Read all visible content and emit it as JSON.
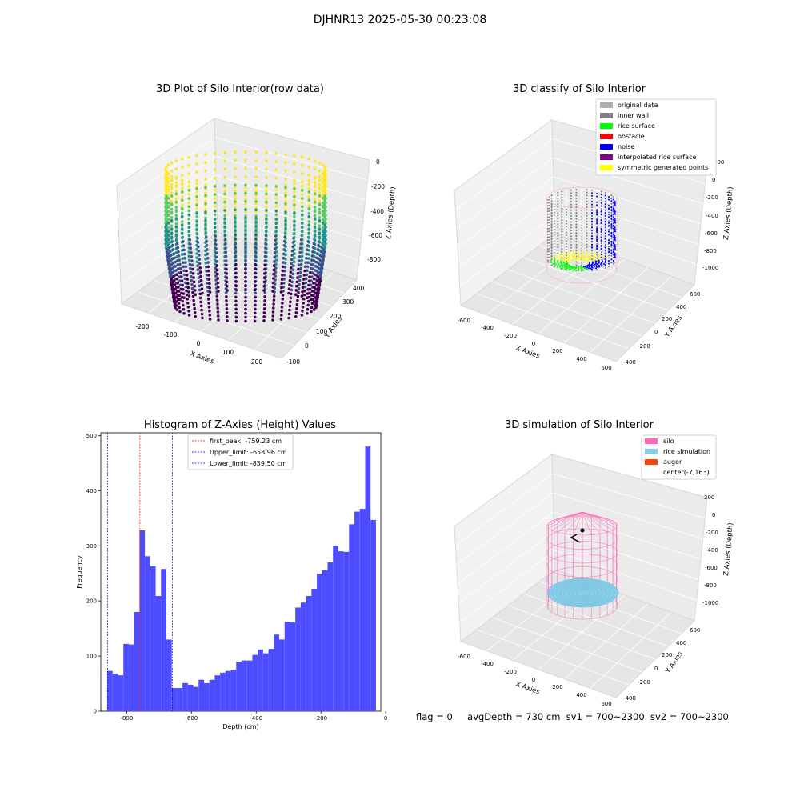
{
  "figure": {
    "suptitle": "DJHNR13 2025-05-30 00:23:08"
  },
  "panel_raw": {
    "title": "3D Plot of Silo Interior(row data)",
    "xlabel": "X Axies",
    "ylabel": "Y Axies",
    "zlabel": "Z Axies (Depth)",
    "xticks": [
      "-200",
      "-100",
      "0",
      "100",
      "200"
    ],
    "yticks": [
      "-100",
      "0",
      "100",
      "200",
      "300",
      "400"
    ],
    "zticks": [
      "0",
      "-200",
      "-400",
      "-600",
      "-800"
    ],
    "colormap": [
      "#440154",
      "#3b528b",
      "#21918c",
      "#5ec962",
      "#fde725"
    ]
  },
  "panel_classify": {
    "title": "3D classify of Silo Interior",
    "xlabel": "X Axies",
    "ylabel": "Y Axies",
    "zlabel": "Z Axies (Depth)",
    "xticks": [
      "-600",
      "-400",
      "-200",
      "0",
      "200",
      "400",
      "600"
    ],
    "yticks": [
      "-400",
      "-200",
      "0",
      "200",
      "400",
      "600"
    ],
    "zticks": [
      "200",
      "0",
      "-200",
      "-400",
      "-600",
      "-800",
      "-1000"
    ],
    "legend": [
      {
        "label": "original data",
        "color": "#b0b0b0"
      },
      {
        "label": "inner wall",
        "color": "#808080"
      },
      {
        "label": "rice surface",
        "color": "#00ff00"
      },
      {
        "label": "obstacle",
        "color": "#ff0000"
      },
      {
        "label": "noise",
        "color": "#0000ff"
      },
      {
        "label": "interpolated rice surface",
        "color": "#800080"
      },
      {
        "label": "symmetric generated points",
        "color": "#ffff00"
      }
    ]
  },
  "panel_sim": {
    "title": "3D simulation of Silo Interior",
    "xlabel": "X Axies",
    "ylabel": "Y Axies",
    "zlabel": "Z Axies (Depth)",
    "xticks": [
      "-600",
      "-400",
      "-200",
      "0",
      "200",
      "400",
      "600"
    ],
    "yticks": [
      "-400",
      "-200",
      "0",
      "200",
      "400",
      "600"
    ],
    "zticks": [
      "200",
      "0",
      "-200",
      "-400",
      "-600",
      "-800",
      "-1000"
    ],
    "legend": [
      {
        "label": "silo",
        "color": "#ff69b4"
      },
      {
        "label": "rice simulation",
        "color": "#87ceeb"
      },
      {
        "label": "auger",
        "color": "#ff4500"
      },
      {
        "label": "center(-7,163)",
        "color": "#ffffff"
      }
    ]
  },
  "chart_data": {
    "type": "bar",
    "title": "Histogram of Z-Axies (Height) Values",
    "xlabel": "Depth (cm)",
    "ylabel": "Frequency",
    "xlim": [
      -880,
      -15
    ],
    "ylim": [
      0,
      505
    ],
    "xticks": [
      -800,
      -600,
      -400,
      -200,
      0
    ],
    "yticks": [
      0,
      100,
      200,
      300,
      400,
      500
    ],
    "bar_color": "#4d4dff",
    "bin_start": -860,
    "bin_width": 16.6,
    "values": [
      73,
      68,
      65,
      122,
      121,
      180,
      328,
      281,
      263,
      209,
      258,
      130,
      42,
      42,
      51,
      48,
      44,
      57,
      51,
      57,
      65,
      70,
      73,
      75,
      90,
      92,
      92,
      102,
      112,
      105,
      113,
      139,
      130,
      162,
      161,
      188,
      197,
      209,
      222,
      249,
      256,
      270,
      300,
      290,
      289,
      339,
      362,
      367,
      480,
      347
    ],
    "vlines": [
      {
        "label": "first_peak: -759.23 cm",
        "x": -759.23,
        "color": "#ff0000"
      },
      {
        "label": "Upper_limit: -658.96 cm",
        "x": -658.96,
        "color": "#0000ff"
      },
      {
        "label": "Lower_limit: -859.50 cm",
        "x": -859.5,
        "color": "#0000ff"
      }
    ],
    "legend_position": "upper-center"
  },
  "footer": {
    "flag": "flag = 0",
    "avg_depth": "avgDepth = 730 cm",
    "sv1": "sv1 = 700~2300",
    "sv2": "sv2 = 700~2300"
  }
}
